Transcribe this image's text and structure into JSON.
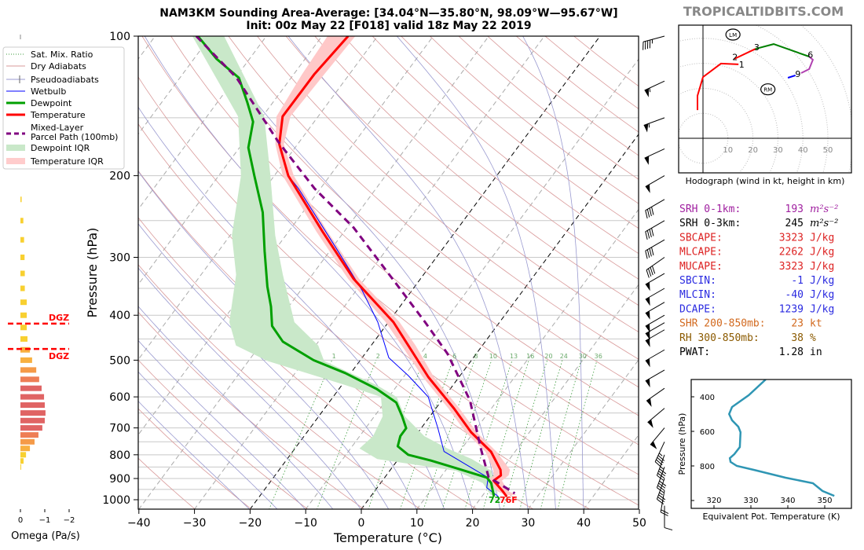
{
  "header": {
    "title_line1": "NAM3KM Sounding Area-Average: [34.04°N—35.80°N, 98.09°W—95.67°W]",
    "title_line2": "Init: 00z May 22 [F018] valid 18z May 22 2019",
    "watermark": "TROPICALTIDBITS.COM"
  },
  "legend": {
    "items": [
      {
        "label": "Sat. Mix. Ratio",
        "color": "#3a9a3a",
        "style": "dotted"
      },
      {
        "label": "Dry Adiabats",
        "color": "#d99a9a",
        "style": "solid"
      },
      {
        "label": "Pseudoadiabats",
        "color": "#9a9ad0",
        "style": "solid"
      },
      {
        "label": "Wetbulb",
        "color": "#0000ff",
        "style": "solid"
      },
      {
        "label": "Dewpoint",
        "color": "#00a000",
        "style": "thick"
      },
      {
        "label": "Temperature",
        "color": "#ff0000",
        "style": "thick"
      },
      {
        "label": "Mixed-Layer",
        "label2": "Parcel Path (100mb)",
        "color": "#800080",
        "style": "dashed"
      },
      {
        "label": "Dewpoint IQR",
        "color": "#c9e8c9",
        "style": "band"
      },
      {
        "label": "Temperature IQR",
        "color": "#ffcccc",
        "style": "band"
      }
    ]
  },
  "chart_data": [
    {
      "type": "line",
      "title": "",
      "xlabel": "Temperature (°C)",
      "ylabel": "Pressure (hPa)",
      "xlim": [
        -40,
        50
      ],
      "ylim": [
        1050,
        100
      ],
      "yscale": "log",
      "skew": true,
      "xticks": [
        -40,
        -30,
        -20,
        -10,
        0,
        10,
        20,
        30,
        40,
        50
      ],
      "yticks": [
        100,
        200,
        300,
        400,
        500,
        600,
        700,
        800,
        900,
        1000
      ],
      "mixing_ratio_labels": [
        "1",
        "2",
        "4",
        "6",
        "8",
        "10",
        "13",
        "16",
        "20",
        "24",
        "30",
        "36"
      ],
      "highlight_isotherms": [
        0,
        -20
      ],
      "series": [
        {
          "name": "Temperature",
          "color": "#ff0000",
          "points": [
            [
              100,
              -65.3
            ],
            [
              121,
              -66.3
            ],
            [
              149,
              -66.4
            ],
            [
              171,
              -63.3
            ],
            [
              200,
              -57.5
            ],
            [
              264,
              -43.9
            ],
            [
              334,
              -32.0
            ],
            [
              414,
              -19.1
            ],
            [
              465,
              -13.3
            ],
            [
              544,
              -5.5
            ],
            [
              636,
              3.3
            ],
            [
              715,
              9.5
            ],
            [
              788,
              15.7
            ],
            [
              862,
              19.8
            ],
            [
              886,
              20.6
            ],
            [
              910,
              20.0
            ],
            [
              958,
              23.0
            ],
            [
              985,
              24.5
            ]
          ]
        },
        {
          "name": "Dewpoint",
          "color": "#00a000",
          "points": [
            [
              100,
              -92.3
            ],
            [
              112,
              -85.9
            ],
            [
              123,
              -79.4
            ],
            [
              139,
              -74.6
            ],
            [
              153,
              -71.0
            ],
            [
              174,
              -68.4
            ],
            [
              200,
              -63.6
            ],
            [
              240,
              -57.2
            ],
            [
              291,
              -51.7
            ],
            [
              347,
              -46.5
            ],
            [
              383,
              -43.2
            ],
            [
              422,
              -40.4
            ],
            [
              456,
              -36.4
            ],
            [
              500,
              -28.4
            ],
            [
              533,
              -21.0
            ],
            [
              577,
              -13.2
            ],
            [
              617,
              -7.9
            ],
            [
              661,
              -5.0
            ],
            [
              701,
              -2.7
            ],
            [
              729,
              -2.7
            ],
            [
              767,
              -1.8
            ],
            [
              800,
              1.2
            ],
            [
              823,
              6.0
            ],
            [
              859,
              12.3
            ],
            [
              896,
              18.4
            ],
            [
              921,
              19.9
            ],
            [
              985,
              22.2
            ]
          ]
        },
        {
          "name": "Wetbulb",
          "color": "#0000ff",
          "points": [
            [
              200,
              -57.5
            ],
            [
              213,
              -54.0
            ],
            [
              291,
              -38.5
            ],
            [
              354,
              -28.9
            ],
            [
              414,
              -21.9
            ],
            [
              494,
              -15.2
            ],
            [
              540,
              -9.3
            ],
            [
              600,
              -2.9
            ],
            [
              701,
              3.0
            ],
            [
              787,
              7.2
            ],
            [
              896,
              18.6
            ],
            [
              942,
              19.7
            ],
            [
              985,
              23.0
            ]
          ]
        },
        {
          "name": "Mixed-Layer Parcel Path (100mb)",
          "color": "#800080",
          "points": [
            [
              100,
              -92.6
            ],
            [
              123,
              -79.8
            ],
            [
              169,
              -63.8
            ],
            [
              213,
              -51.1
            ],
            [
              259,
              -38.8
            ],
            [
              334,
              -25.0
            ],
            [
              414,
              -13.4
            ],
            [
              484,
              -5.2
            ],
            [
              611,
              5.1
            ],
            [
              773,
              13.3
            ],
            [
              893,
              18.6
            ],
            [
              969,
              25.5
            ]
          ]
        }
      ],
      "dewpoint_iqr": [
        [
          100,
          -93.3,
          -87.6
        ],
        [
          149,
          -74.4,
          -69.7
        ],
        [
          200,
          -66.0,
          -60.7
        ],
        [
          269,
          -59.7,
          -51.9
        ],
        [
          327,
          -53.7,
          -45.3
        ],
        [
          414,
          -48.6,
          -36.9
        ],
        [
          465,
          -44.3,
          -29.5
        ],
        [
          502,
          -36.6,
          -26.4
        ],
        [
          566,
          -19.3,
          -13.7
        ],
        [
          600,
          -11.4,
          -8.6
        ],
        [
          661,
          -8.5,
          -4.5
        ],
        [
          729,
          -7.6,
          1.6
        ],
        [
          775,
          -8.4,
          7.4
        ],
        [
          817,
          -3.8,
          13.2
        ],
        [
          866,
          11.9,
          18.3
        ],
        [
          921,
          18.4,
          20.3
        ],
        [
          977,
          21.4,
          22.4
        ]
      ],
      "temperature_iqr": [
        [
          100,
          -69,
          -64
        ],
        [
          121,
          -68.5,
          -64.5
        ],
        [
          149,
          -67.5,
          -65
        ],
        [
          171,
          -64,
          -62.5
        ],
        [
          200,
          -58.5,
          -56.5
        ],
        [
          264,
          -45,
          -43
        ],
        [
          334,
          -33,
          -31
        ],
        [
          414,
          -20.5,
          -18
        ],
        [
          465,
          -14.5,
          -12
        ],
        [
          544,
          -6.5,
          -4.5
        ],
        [
          636,
          2.3,
          4.3
        ],
        [
          715,
          8.5,
          10.5
        ],
        [
          788,
          14.7,
          16.7
        ],
        [
          862,
          18.5,
          21.5
        ],
        [
          886,
          19.3,
          22
        ],
        [
          910,
          19,
          21.5
        ],
        [
          958,
          22,
          24
        ],
        [
          977,
          24,
          26
        ]
      ],
      "surface_labels": {
        "dewpoint": "72",
        "temperature": "76F"
      },
      "wind_barbs": {
        "pressure": [
          100,
          125,
          150,
          175,
          200,
          225,
          250,
          275,
          300,
          325,
          350,
          375,
          400,
          415,
          430,
          475,
          525,
          575,
          635,
          700,
          750,
          800,
          850,
          900,
          955,
          1030
        ],
        "speed_kt": [
          45,
          55,
          55,
          50,
          50,
          40,
          40,
          40,
          40,
          50,
          50,
          50,
          50,
          50,
          50,
          50,
          50,
          50,
          50,
          50,
          45,
          45,
          40,
          35,
          20,
          10
        ],
        "direction_deg": [
          255,
          245,
          250,
          245,
          240,
          240,
          240,
          240,
          235,
          240,
          240,
          240,
          240,
          240,
          240,
          240,
          240,
          235,
          230,
          220,
          205,
          200,
          200,
          200,
          190,
          180
        ]
      }
    },
    {
      "type": "bar",
      "xlabel": "Omega (Pa/s)",
      "xticks": [
        "0",
        "−1",
        "−2"
      ],
      "xlim": [
        0,
        -2
      ],
      "pressure": [
        225,
        250,
        275,
        300,
        325,
        350,
        375,
        400,
        425,
        450,
        475,
        500,
        525,
        550,
        575,
        600,
        625,
        650,
        675,
        700,
        725,
        750,
        775,
        800,
        825,
        850
      ],
      "values": [
        -0.05,
        -0.12,
        -0.15,
        -0.17,
        -0.18,
        -0.18,
        -0.26,
        -0.26,
        -0.26,
        -0.29,
        -0.39,
        -0.48,
        -0.65,
        -0.77,
        -0.87,
        -0.97,
        -1.0,
        -1.03,
        -1.0,
        -0.9,
        -0.74,
        -0.58,
        -0.39,
        -0.23,
        -0.13,
        -0.03
      ],
      "dgz": {
        "label": "DGZ",
        "top_hPa": 417,
        "bottom_hPa": 473,
        "color": "#ff0000"
      }
    },
    {
      "type": "line",
      "title": "Hodograph (wind in kt, height in km)",
      "rings_kt": [
        10,
        20,
        30,
        40,
        50,
        60
      ],
      "tick_labels": [
        "10",
        "20",
        "30",
        "40",
        "50"
      ],
      "segments": [
        {
          "color": "#ff0000",
          "points": [
            [
              -2.2,
              11.3
            ],
            [
              -2.2,
              17
            ],
            [
              0,
              24.5
            ],
            [
              7.2,
              29.9
            ],
            [
              14.2,
              29.6
            ]
          ]
        },
        {
          "color": "#ff0000",
          "points": [
            [
              12.6,
              31.8
            ],
            [
              21,
              35.8
            ]
          ]
        },
        {
          "color": "#008000",
          "points": [
            [
              21,
              35.8
            ],
            [
              28.3,
              37.7
            ],
            [
              42.5,
              32.7
            ]
          ]
        },
        {
          "color": "#b040b0",
          "points": [
            [
              42.5,
              32.7
            ],
            [
              44,
              31.4
            ],
            [
              42.5,
              27.7
            ],
            [
              39.3,
              26.1
            ]
          ]
        },
        {
          "color": "#0000ff",
          "points": [
            [
              37,
              25.2
            ],
            [
              34,
              24.2
            ]
          ]
        }
      ],
      "height_labels": [
        {
          "text": "1",
          "u": 15.5,
          "v": 29.5
        },
        {
          "text": "2",
          "u": 12.8,
          "v": 32.5
        },
        {
          "text": "3",
          "u": 21.5,
          "v": 36.5
        },
        {
          "text": "6",
          "u": 43,
          "v": 33.5
        },
        {
          "text": "9",
          "u": 38,
          "v": 25.8
        }
      ],
      "storm_motion": [
        {
          "label": "LM",
          "u": 12,
          "v": 41.5
        },
        {
          "label": "RM",
          "u": 26,
          "v": 19.6
        }
      ]
    },
    {
      "type": "line",
      "xlabel": "Equivalent Pot. Temperature (K)",
      "ylabel": "Pressure (hPa)",
      "xticks": [
        320,
        330,
        340,
        350
      ],
      "yticks": [
        400,
        600,
        800
      ],
      "xlim": [
        314,
        357
      ],
      "ylim": [
        1045,
        300
      ],
      "color": "#2f96b4",
      "points": [
        [
          300,
          334
        ],
        [
          391,
          329.4
        ],
        [
          459,
          324.9
        ],
        [
          500,
          324.1
        ],
        [
          536,
          324.9
        ],
        [
          573,
          326.6
        ],
        [
          605,
          327.2
        ],
        [
          691,
          327
        ],
        [
          732,
          325.5
        ],
        [
          755,
          324.3
        ],
        [
          777,
          324.5
        ],
        [
          800,
          326.2
        ],
        [
          823,
          330.9
        ],
        [
          868,
          339.4
        ],
        [
          900,
          346.8
        ],
        [
          945,
          349.4
        ],
        [
          973,
          352.6
        ]
      ]
    }
  ],
  "indices": [
    {
      "label": "SRH 0-1km:",
      "value": "193",
      "unit": "m²s⁻²",
      "color": "#a020a0"
    },
    {
      "label": "SRH 0-3km:",
      "value": "245",
      "unit": "m²s⁻²",
      "color": "#000000"
    },
    {
      "label": "SBCAPE:",
      "value": "3323",
      "unit": "J/kg",
      "color": "#dd2222"
    },
    {
      "label": "MLCAPE:",
      "value": "2262",
      "unit": "J/kg",
      "color": "#dd2222"
    },
    {
      "label": "MUCAPE:",
      "value": "3323",
      "unit": "J/kg",
      "color": "#dd2222"
    },
    {
      "label": "SBCIN:",
      "value": "-1",
      "unit": "J/kg",
      "color": "#2a2ae0"
    },
    {
      "label": "MLCIN:",
      "value": "-40",
      "unit": "J/kg",
      "color": "#2a2ae0"
    },
    {
      "label": "DCAPE:",
      "value": "1239",
      "unit": "J/kg",
      "color": "#2a2ae0"
    },
    {
      "label": "SHR 200-850mb:",
      "value": "23",
      "unit": "kt",
      "color": "#d2691e"
    },
    {
      "label": "RH 300-850mb:",
      "value": "38",
      "unit": "%",
      "color": "#8b5a00"
    },
    {
      "label": "PWAT:",
      "value": "1.28",
      "unit": "in",
      "color": "#000000"
    }
  ]
}
